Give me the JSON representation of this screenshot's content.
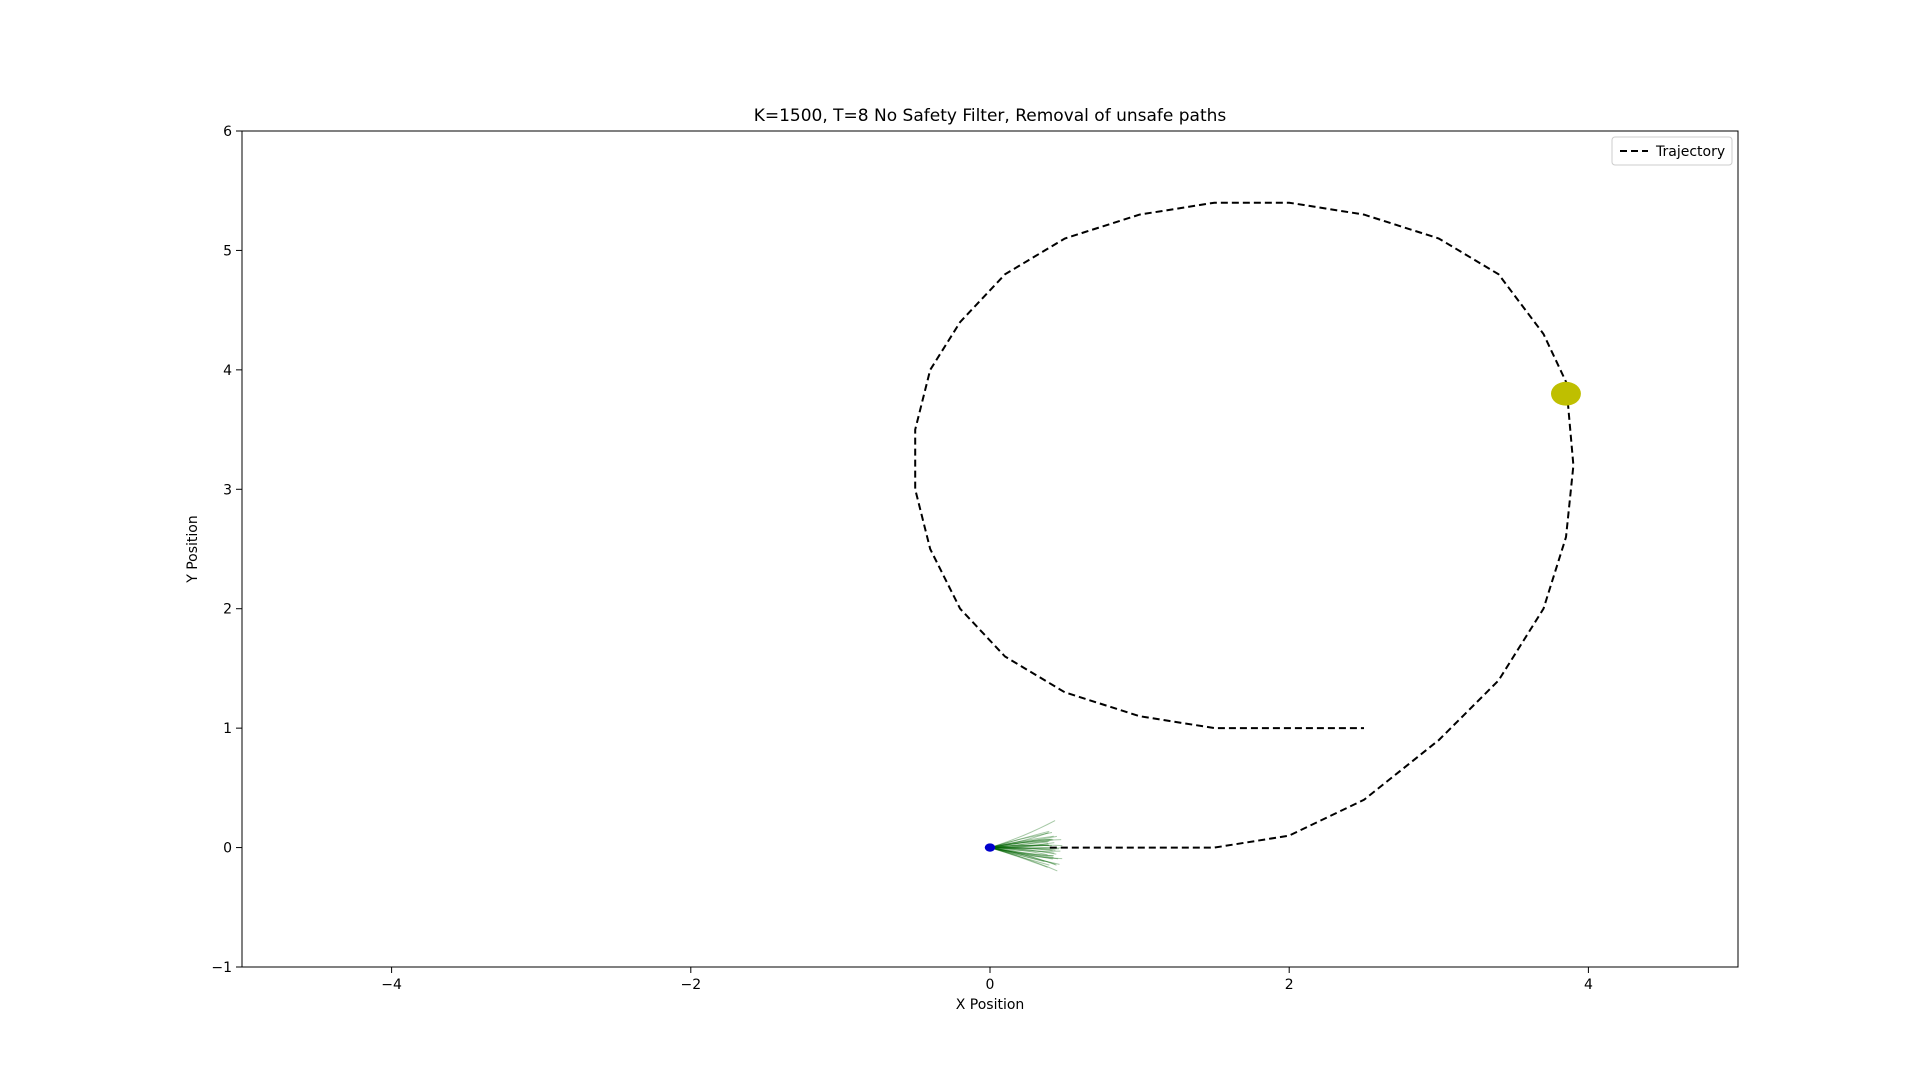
{
  "chart_data": {
    "type": "line",
    "title": "K=1500, T=8 No Safety Filter, Removal of unsafe paths",
    "xlabel": "X Position",
    "ylabel": "Y Position",
    "xlim": [
      -5,
      5
    ],
    "ylim": [
      -1,
      6
    ],
    "x_ticks": [
      -4,
      -2,
      0,
      2,
      4
    ],
    "y_ticks": [
      -1,
      0,
      1,
      2,
      3,
      4,
      5,
      6
    ],
    "x_tick_labels": [
      "−4",
      "−2",
      "0",
      "2",
      "4"
    ],
    "y_tick_labels": [
      "−1",
      "0",
      "1",
      "2",
      "3",
      "4",
      "5",
      "6"
    ],
    "grid": false,
    "legend_position": "top-right",
    "series": [
      {
        "name": "Trajectory",
        "style": "dashed",
        "color": "#000000",
        "x": [
          0.4,
          1.0,
          1.5,
          2.0,
          2.5,
          3.0,
          3.4,
          3.7,
          3.85,
          3.9,
          3.85,
          3.7,
          3.4,
          3.0,
          2.5,
          2.0,
          1.5,
          1.0,
          0.5,
          0.1,
          -0.2,
          -0.4,
          -0.5,
          -0.5,
          -0.4,
          -0.2,
          0.1,
          0.5,
          1.0,
          1.5,
          2.0,
          2.5
        ],
        "y": [
          0.0,
          0.0,
          0.0,
          0.1,
          0.4,
          0.9,
          1.4,
          2.0,
          2.6,
          3.2,
          3.9,
          4.3,
          4.8,
          5.1,
          5.3,
          5.4,
          5.4,
          5.3,
          5.1,
          4.8,
          4.4,
          4.0,
          3.5,
          3.0,
          2.5,
          2.0,
          1.6,
          1.3,
          1.1,
          1.0,
          1.0,
          1.0
        ]
      }
    ],
    "markers": [
      {
        "name": "goal",
        "x": 3.85,
        "y": 3.8,
        "radius": 0.1,
        "color": "#bfbf00"
      },
      {
        "name": "robot",
        "x": 0.0,
        "y": 0.0,
        "radius": 0.035,
        "color": "#0000cc"
      }
    ],
    "rollouts": {
      "origin_x": 0.0,
      "origin_y": 0.0,
      "color": "#006400",
      "count": 40,
      "length_min": 0.38,
      "length_max": 0.5,
      "angle_spread_deg": 22
    }
  }
}
